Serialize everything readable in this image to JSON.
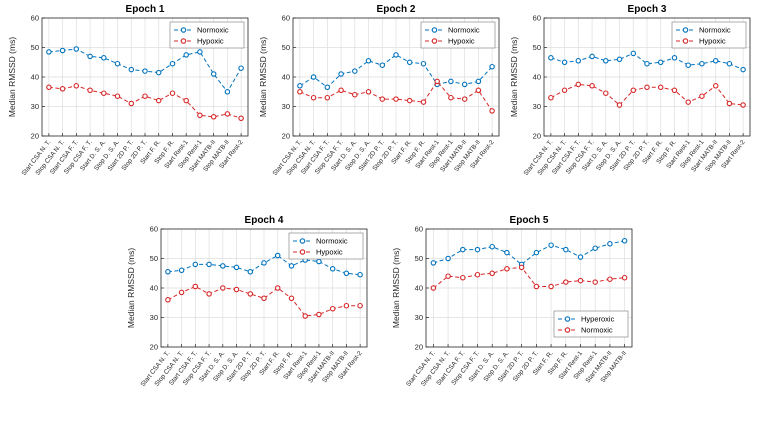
{
  "figure": {
    "background": "#ffffff"
  },
  "colors": {
    "blue": "#0072bd",
    "red": "#d62728",
    "grid": "#dedede",
    "axis": "#262626",
    "legend_border": "#8c8c8c"
  },
  "chart_data": [
    {
      "type": "line",
      "title": "Epoch 1",
      "xlabel": "",
      "ylabel": "Median RMSSD (ms)",
      "ylim": [
        20,
        60
      ],
      "yticks": [
        20,
        30,
        40,
        50,
        60
      ],
      "grid": true,
      "legend_pos": "top-right",
      "categories": [
        "Start CSA N. T.",
        "Stop CSA N. T.",
        "Start CSA F. T.",
        "Stop CSA F. T.",
        "Start D. S. A.",
        "Stop D. S. A.",
        "Start 2D P. T.",
        "Stop 2D P. T.",
        "Start F. R.",
        "Stop F. R.",
        "Start Rest-1",
        "Stop Rest-1",
        "Start MATB-II",
        "Stop MATB-II",
        "Start Rest-2"
      ],
      "series": [
        {
          "name": "Normoxic",
          "color": "#0072bd",
          "values": [
            48.5,
            49,
            49.5,
            47,
            46.5,
            44.5,
            42.5,
            42,
            41.5,
            44.5,
            47.5,
            48.5,
            41,
            35,
            43
          ]
        },
        {
          "name": "Hypoxic",
          "color": "#d62728",
          "values": [
            36.5,
            36,
            37,
            35.5,
            34.5,
            33.5,
            31,
            33.5,
            32,
            34.5,
            32,
            27,
            26.5,
            27.5,
            26
          ]
        }
      ]
    },
    {
      "type": "line",
      "title": "Epoch 2",
      "xlabel": "",
      "ylabel": "Median RMSSD (ms)",
      "ylim": [
        20,
        60
      ],
      "yticks": [
        20,
        30,
        40,
        50,
        60
      ],
      "grid": true,
      "legend_pos": "top-right",
      "categories": [
        "Start CSA N. T.",
        "Stop CSA N. T.",
        "Start CSA F. T.",
        "Stop CSA F. T.",
        "Start D. S. A.",
        "Stop D. S. A.",
        "Start 2D P. T.",
        "Stop 2D P. T.",
        "Start F. R.",
        "Stop F. R.",
        "Start Rest-1",
        "Stop Rest-1",
        "Start MATB-II",
        "Stop MATB-II",
        "Start Rest-2"
      ],
      "series": [
        {
          "name": "Normoxic",
          "color": "#0072bd",
          "values": [
            37,
            40,
            36.5,
            41,
            42,
            45.5,
            44,
            47.5,
            45,
            44.5,
            37.5,
            38.5,
            37.5,
            38.5,
            43.5
          ]
        },
        {
          "name": "Hypoxic",
          "color": "#d62728",
          "values": [
            35,
            33,
            33,
            35.5,
            34,
            35,
            32.5,
            32.5,
            32,
            31.5,
            38.5,
            33,
            32.5,
            35.5,
            28.5
          ]
        }
      ]
    },
    {
      "type": "line",
      "title": "Epoch 3",
      "xlabel": "",
      "ylabel": "Median RMSSD (ms)",
      "ylim": [
        20,
        60
      ],
      "yticks": [
        20,
        30,
        40,
        50,
        60
      ],
      "grid": true,
      "legend_pos": "top-right",
      "categories": [
        "Start CSA N. T.",
        "Stop CSA N. T.",
        "Start CSA F. T.",
        "Stop CSA F. T.",
        "Start D. S. A.",
        "Stop D. S. A.",
        "Start 2D P. T.",
        "Stop 2D P. T.",
        "Start F. R.",
        "Stop F. R.",
        "Start Rest-1",
        "Stop Rest-1",
        "Start MATB-II",
        "Stop MATB-II",
        "Start Rest-2"
      ],
      "series": [
        {
          "name": "Normoxic",
          "color": "#0072bd",
          "values": [
            46.5,
            45,
            45.5,
            47,
            45.5,
            46,
            48,
            44.5,
            45,
            46.5,
            44,
            44.5,
            45.5,
            44.5,
            42.5
          ]
        },
        {
          "name": "Hypoxic",
          "color": "#d62728",
          "values": [
            33,
            35.5,
            37.5,
            37,
            34.5,
            30.5,
            35.5,
            36.5,
            36.5,
            35.5,
            31.5,
            33.5,
            37,
            31,
            30.5
          ]
        }
      ]
    },
    {
      "type": "line",
      "title": "Epoch 4",
      "xlabel": "",
      "ylabel": "Median RMSSD (ms)",
      "ylim": [
        20,
        60
      ],
      "yticks": [
        20,
        30,
        40,
        50,
        60
      ],
      "grid": true,
      "legend_pos": "top-right",
      "categories": [
        "Start CSA N. T.",
        "Stop CSA N. T.",
        "Start CSA F. T.",
        "Stop CSA F. T.",
        "Start D. S. A.",
        "Stop D. S. A.",
        "Start 2D P. T.",
        "Stop 2D P. T.",
        "Start F. R.",
        "Stop F. R.",
        "Start Rest-1",
        "Stop Rest-1",
        "Start MATB-II",
        "Stop MATB-II",
        "Start Rest-2"
      ],
      "series": [
        {
          "name": "Normoxic",
          "color": "#0072bd",
          "values": [
            45.5,
            46,
            48,
            48,
            47.5,
            47,
            45.5,
            48.5,
            51,
            47.5,
            49.5,
            49,
            46.5,
            45,
            44.5
          ]
        },
        {
          "name": "Hypoxic",
          "color": "#d62728",
          "values": [
            36,
            38.5,
            40.5,
            38,
            40,
            39.5,
            38,
            36.5,
            40,
            36.5,
            30.5,
            31,
            33,
            34,
            34
          ]
        }
      ]
    },
    {
      "type": "line",
      "title": "Epoch 5",
      "xlabel": "",
      "ylabel": "Median RMSSD (ms)",
      "ylim": [
        20,
        60
      ],
      "yticks": [
        20,
        30,
        40,
        50,
        60
      ],
      "grid": true,
      "legend_pos": "bottom-right",
      "categories": [
        "Start CSA N. T.",
        "Stop CSA N. T.",
        "Start CSA F. T.",
        "Stop CSA F. T.",
        "Start D. S. A.",
        "Stop D. S. A.",
        "Start 2D P. T.",
        "Stop 2D P. T.",
        "Start F. R.",
        "Stop F. R.",
        "Start Rest-1",
        "Stop Rest-1",
        "Start MATB-II",
        "Stop MATB-II"
      ],
      "series": [
        {
          "name": "Hyperoxic",
          "color": "#0072bd",
          "values": [
            48.5,
            50,
            53,
            53,
            54,
            52,
            48,
            52,
            54.5,
            53,
            50.5,
            53.5,
            55,
            56
          ]
        },
        {
          "name": "Normoxic",
          "color": "#d62728",
          "values": [
            40,
            44,
            43.5,
            44.5,
            45,
            46.5,
            47,
            40.5,
            40.5,
            42,
            42.5,
            42,
            43,
            43.5
          ]
        }
      ]
    }
  ]
}
